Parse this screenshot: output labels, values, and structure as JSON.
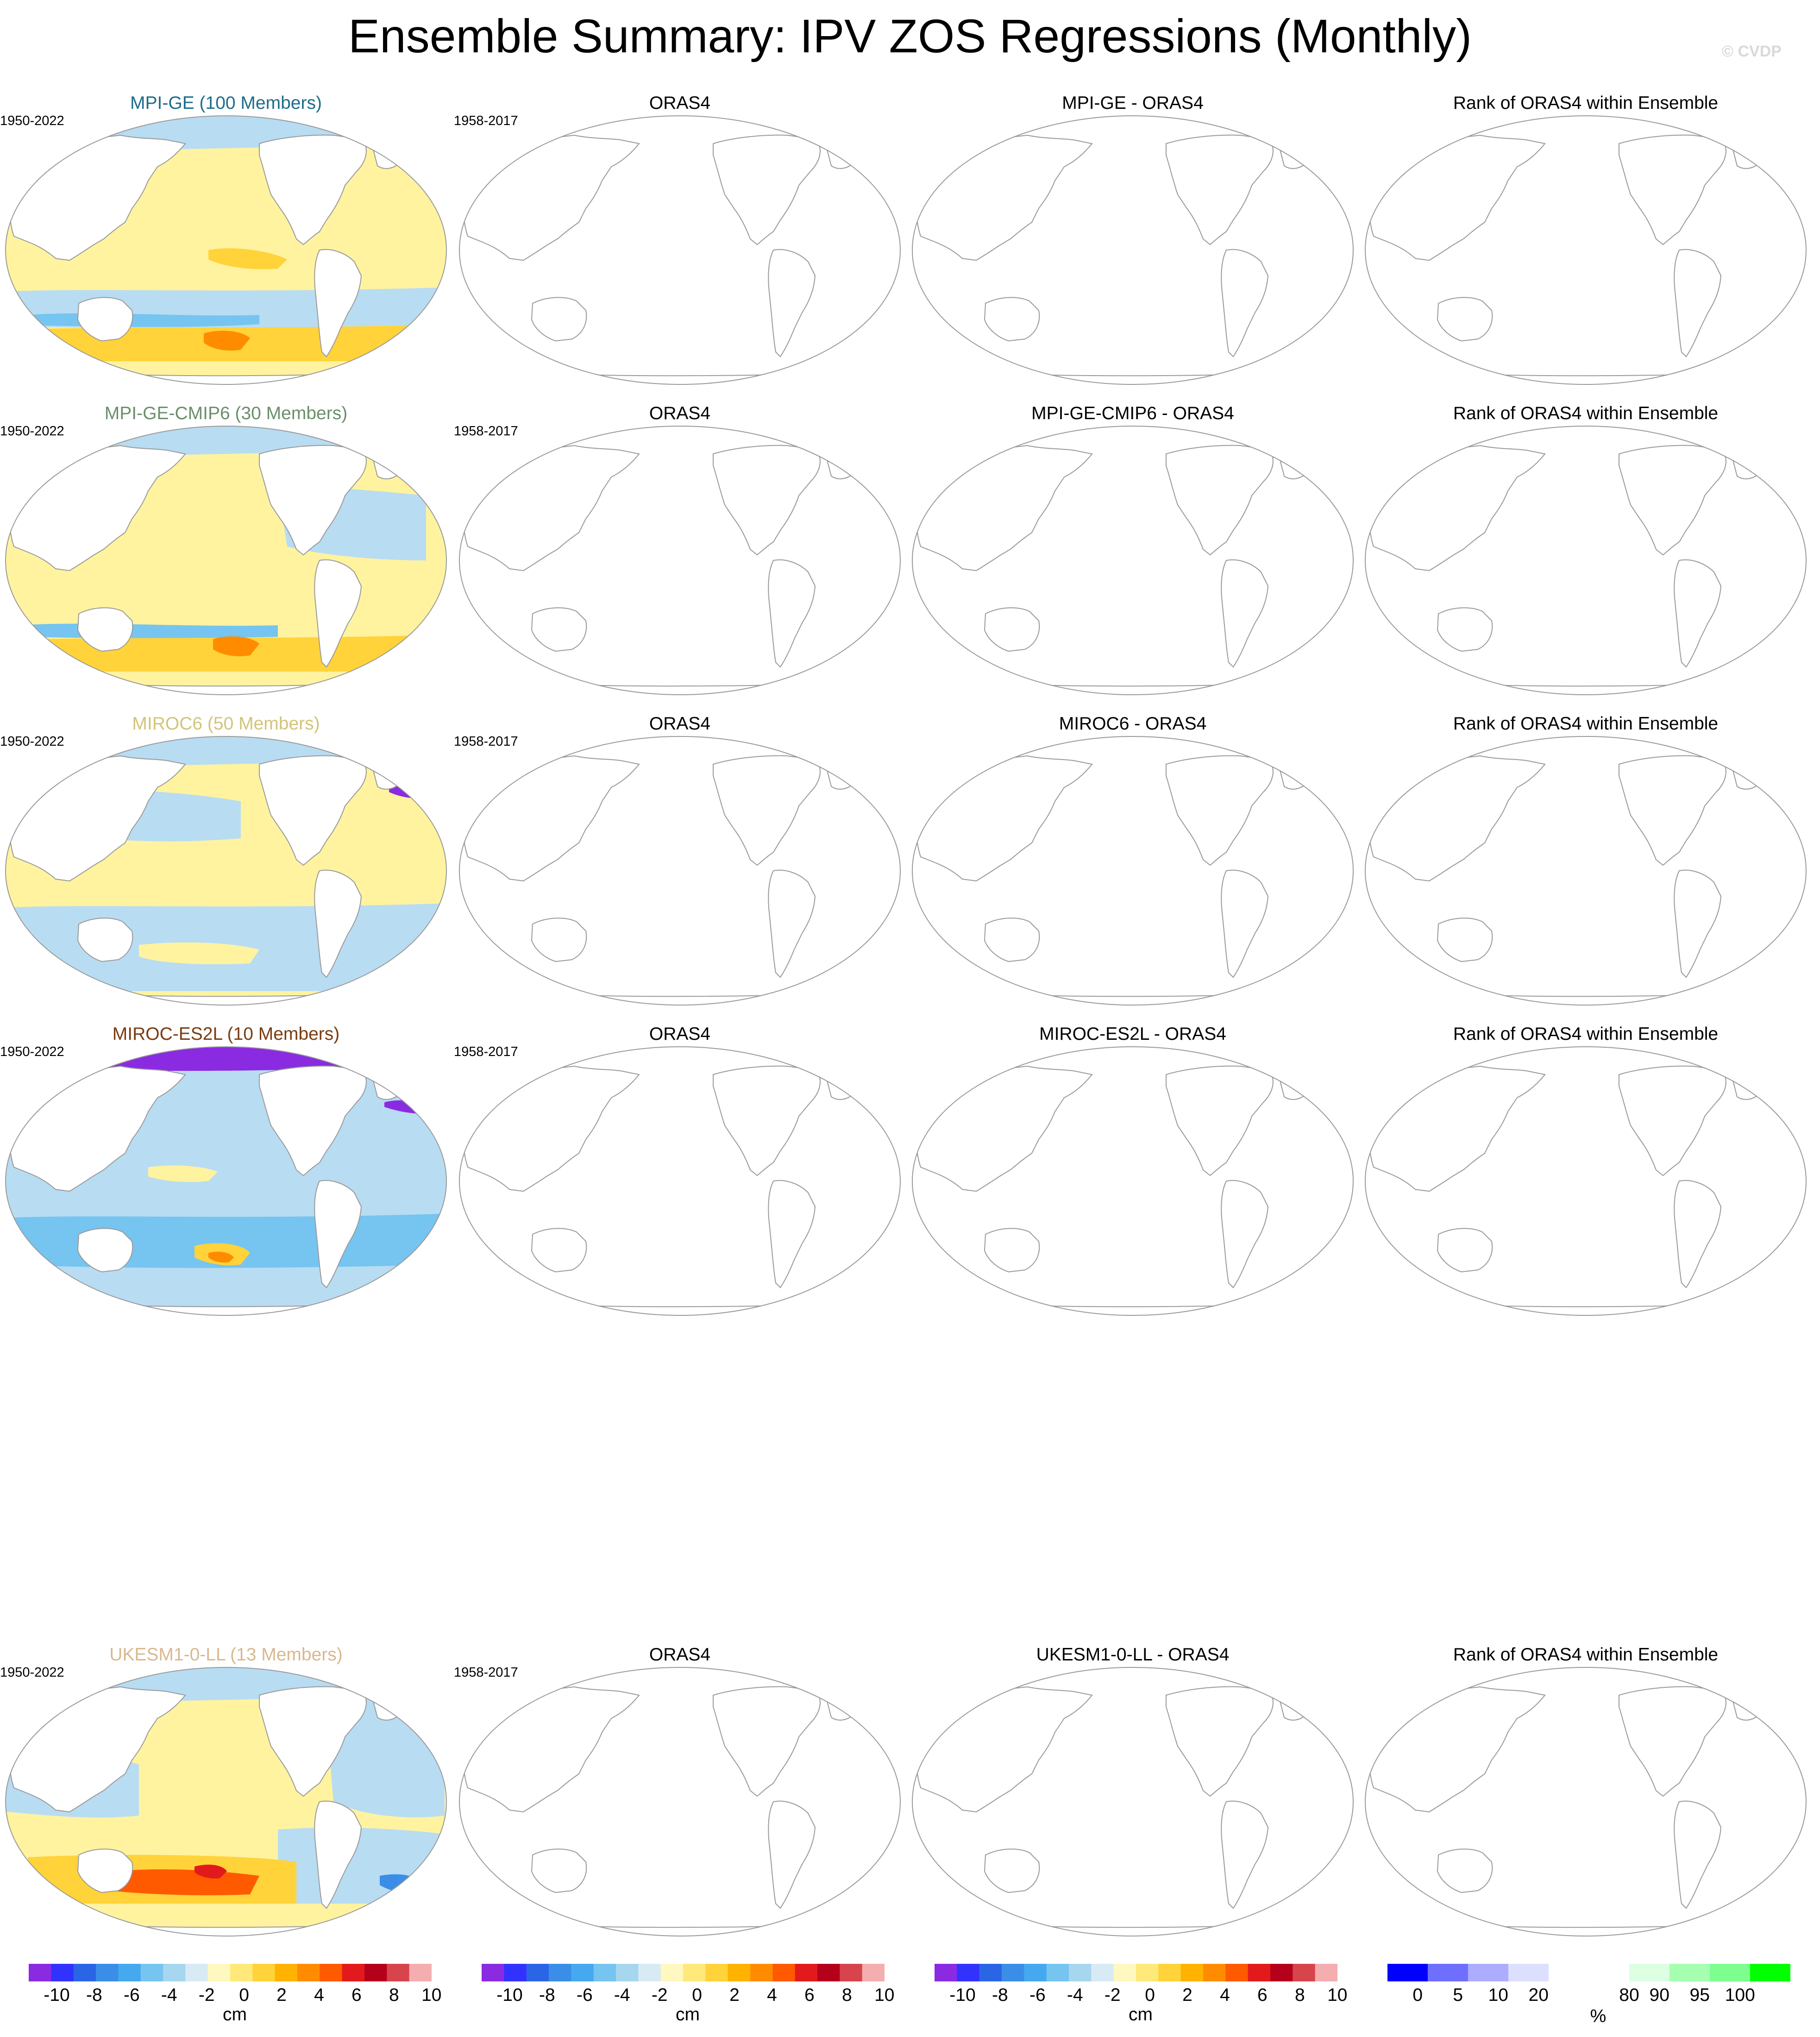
{
  "title": "Ensemble Summary: IPV ZOS Regressions (Monthly)",
  "copyright": "© CVDP",
  "rows": [
    {
      "model": {
        "label": "MPI-GE (100 Members)",
        "color": "#1d6d8a",
        "years": "1950-2022",
        "pattern": "mpi"
      },
      "obs": {
        "label": "ORAS4",
        "years": "1958-2017"
      },
      "diff": {
        "label": "MPI-GE - ORAS4"
      },
      "rank": {
        "label": "Rank of ORAS4 within Ensemble"
      }
    },
    {
      "model": {
        "label": "MPI-GE-CMIP6 (30 Members)",
        "color": "#6b8f6b",
        "years": "1950-2022",
        "pattern": "mpi6"
      },
      "obs": {
        "label": "ORAS4",
        "years": "1958-2017"
      },
      "diff": {
        "label": "MPI-GE-CMIP6 - ORAS4"
      },
      "rank": {
        "label": "Rank of ORAS4 within Ensemble"
      }
    },
    {
      "model": {
        "label": "MIROC6 (50 Members)",
        "color": "#d2c47a",
        "years": "1950-2022",
        "pattern": "miroc6"
      },
      "obs": {
        "label": "ORAS4",
        "years": "1958-2017"
      },
      "diff": {
        "label": "MIROC6 - ORAS4"
      },
      "rank": {
        "label": "Rank of ORAS4 within Ensemble"
      }
    },
    {
      "model": {
        "label": "MIROC-ES2L (10 Members)",
        "color": "#7a3c10",
        "years": "1950-2022",
        "pattern": "es2l"
      },
      "obs": {
        "label": "ORAS4",
        "years": "1958-2017"
      },
      "diff": {
        "label": "MIROC-ES2L - ORAS4"
      },
      "rank": {
        "label": "Rank of ORAS4 within Ensemble"
      }
    },
    {
      "model": {
        "label": "UKESM1-0-LL (13 Members)",
        "color": "#d9b890",
        "years": "1950-2022",
        "pattern": "ukesm"
      },
      "obs": {
        "label": "ORAS4",
        "years": "1958-2017"
      },
      "diff": {
        "label": "UKESM1-0-LL - ORAS4"
      },
      "rank": {
        "label": "Rank of ORAS4 within Ensemble"
      }
    }
  ],
  "colorbars": {
    "regression": {
      "unit": "cm",
      "colors": [
        "#8a2be2",
        "#3232ff",
        "#2a65e6",
        "#3a8ee8",
        "#45a9f0",
        "#76c4f0",
        "#a7d6ef",
        "#d8ebf5",
        "#fff8c0",
        "#ffe97a",
        "#ffd339",
        "#ffb300",
        "#ff8c00",
        "#ff5a00",
        "#e31a1c",
        "#b5001c",
        "#d8444b",
        "#f4aeb0"
      ],
      "ticks": [
        "-10",
        "-8",
        "-6",
        "-4",
        "-2",
        "0",
        "2",
        "4",
        "6",
        "8",
        "10"
      ]
    },
    "rank": {
      "unit": "%",
      "colors": [
        "#0000ff",
        "#6f6fff",
        "#adadff",
        "#dddfff",
        "#ffffff",
        "#ffffff",
        "#ddffe2",
        "#a6ffb0",
        "#7dff8f",
        "#00ff00"
      ],
      "ticks": [
        "0",
        "5",
        "10",
        "20",
        "80",
        "90",
        "95",
        "100"
      ]
    }
  }
}
